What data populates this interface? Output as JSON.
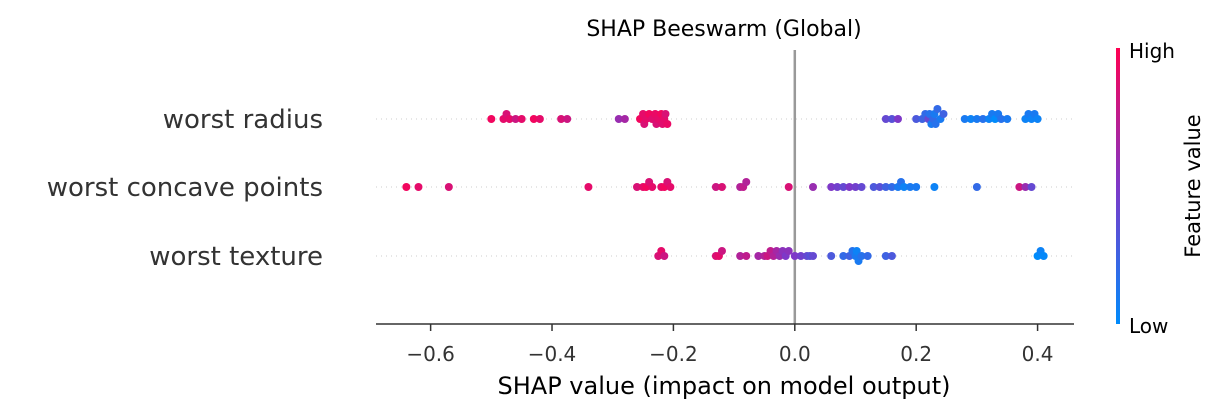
{
  "chart_data": {
    "type": "scatter",
    "subtype": "shap-beeswarm",
    "title": "SHAP Beeswarm (Global)",
    "xlabel": "SHAP value (impact on model output)",
    "ylabel": "",
    "xlim": [
      -0.69,
      0.46
    ],
    "xticks": [
      -0.6,
      -0.4,
      -0.2,
      0.0,
      0.2,
      0.4
    ],
    "xtick_labels": [
      "−0.6",
      "−0.4",
      "−0.2",
      "0.0",
      "0.2",
      "0.4"
    ],
    "grid": false,
    "zero_line": true,
    "colorbar": {
      "label": "Feature value",
      "high_label": "High",
      "low_label": "Low",
      "high_color": "#ff0052",
      "mid_color": "#7e38c8",
      "low_color": "#008bfb"
    },
    "features": [
      {
        "name": "worst radius",
        "points": [
          [
            -0.5,
            0.95
          ],
          [
            -0.48,
            0.9
          ],
          [
            -0.475,
            0.85
          ],
          [
            -0.47,
            0.9
          ],
          [
            -0.46,
            0.8
          ],
          [
            -0.45,
            0.9
          ],
          [
            -0.43,
            0.95
          ],
          [
            -0.42,
            0.9
          ],
          [
            -0.385,
            0.85
          ],
          [
            -0.375,
            0.8
          ],
          [
            -0.29,
            0.6
          ],
          [
            -0.28,
            0.65
          ],
          [
            -0.255,
            0.95
          ],
          [
            -0.25,
            0.9
          ],
          [
            -0.248,
            0.85
          ],
          [
            -0.245,
            0.9
          ],
          [
            -0.24,
            0.95
          ],
          [
            -0.235,
            0.88
          ],
          [
            -0.23,
            0.92
          ],
          [
            -0.228,
            0.85
          ],
          [
            -0.225,
            0.9
          ],
          [
            -0.22,
            0.95
          ],
          [
            -0.218,
            0.88
          ],
          [
            -0.215,
            0.9
          ],
          [
            -0.213,
            0.85
          ],
          [
            -0.21,
            0.92
          ],
          [
            0.15,
            0.4
          ],
          [
            0.16,
            0.35
          ],
          [
            0.17,
            0.5
          ],
          [
            0.2,
            0.3
          ],
          [
            0.21,
            0.25
          ],
          [
            0.215,
            0.2
          ],
          [
            0.22,
            0.4
          ],
          [
            0.222,
            0.15
          ],
          [
            0.225,
            0.1
          ],
          [
            0.228,
            0.2
          ],
          [
            0.23,
            0.1
          ],
          [
            0.232,
            0.15
          ],
          [
            0.235,
            0.2
          ],
          [
            0.24,
            0.1
          ],
          [
            0.245,
            0.25
          ],
          [
            0.28,
            0.1
          ],
          [
            0.29,
            0.05
          ],
          [
            0.3,
            0.1
          ],
          [
            0.31,
            0.15
          ],
          [
            0.32,
            0.05
          ],
          [
            0.325,
            0.1
          ],
          [
            0.33,
            0.0
          ],
          [
            0.335,
            0.1
          ],
          [
            0.34,
            0.15
          ],
          [
            0.35,
            0.1
          ],
          [
            0.38,
            0.05
          ],
          [
            0.385,
            0.1
          ],
          [
            0.39,
            0.05
          ],
          [
            0.395,
            0.1
          ],
          [
            0.4,
            0.05
          ]
        ]
      },
      {
        "name": "worst concave points",
        "points": [
          [
            -0.64,
            0.95
          ],
          [
            -0.62,
            0.9
          ],
          [
            -0.57,
            0.85
          ],
          [
            -0.34,
            0.9
          ],
          [
            -0.26,
            0.85
          ],
          [
            -0.25,
            0.9
          ],
          [
            -0.245,
            0.95
          ],
          [
            -0.24,
            0.85
          ],
          [
            -0.235,
            0.9
          ],
          [
            -0.22,
            0.9
          ],
          [
            -0.215,
            0.95
          ],
          [
            -0.21,
            0.85
          ],
          [
            -0.205,
            0.9
          ],
          [
            -0.13,
            0.8
          ],
          [
            -0.12,
            0.85
          ],
          [
            -0.09,
            0.7
          ],
          [
            -0.085,
            0.75
          ],
          [
            -0.08,
            0.7
          ],
          [
            -0.01,
            0.85
          ],
          [
            0.03,
            0.6
          ],
          [
            0.06,
            0.5
          ],
          [
            0.07,
            0.45
          ],
          [
            0.08,
            0.4
          ],
          [
            0.09,
            0.5
          ],
          [
            0.1,
            0.45
          ],
          [
            0.11,
            0.4
          ],
          [
            0.13,
            0.3
          ],
          [
            0.14,
            0.35
          ],
          [
            0.15,
            0.25
          ],
          [
            0.16,
            0.2
          ],
          [
            0.17,
            0.1
          ],
          [
            0.175,
            0.15
          ],
          [
            0.18,
            0.05
          ],
          [
            0.19,
            0.1
          ],
          [
            0.2,
            0.1
          ],
          [
            0.23,
            0.05
          ],
          [
            0.3,
            0.2
          ],
          [
            0.37,
            0.8
          ],
          [
            0.38,
            0.6
          ],
          [
            0.39,
            0.4
          ]
        ]
      },
      {
        "name": "worst texture",
        "points": [
          [
            -0.225,
            0.85
          ],
          [
            -0.22,
            0.9
          ],
          [
            -0.215,
            0.8
          ],
          [
            -0.13,
            0.85
          ],
          [
            -0.125,
            0.9
          ],
          [
            -0.12,
            0.8
          ],
          [
            -0.09,
            0.7
          ],
          [
            -0.08,
            0.75
          ],
          [
            -0.06,
            0.65
          ],
          [
            -0.05,
            0.7
          ],
          [
            -0.045,
            0.8
          ],
          [
            -0.04,
            0.75
          ],
          [
            -0.035,
            0.7
          ],
          [
            -0.03,
            0.65
          ],
          [
            -0.025,
            0.6
          ],
          [
            -0.02,
            0.55
          ],
          [
            -0.015,
            0.5
          ],
          [
            -0.01,
            0.55
          ],
          [
            0.0,
            0.5
          ],
          [
            0.01,
            0.45
          ],
          [
            0.02,
            0.4
          ],
          [
            0.025,
            0.35
          ],
          [
            0.03,
            0.4
          ],
          [
            0.06,
            0.3
          ],
          [
            0.08,
            0.2
          ],
          [
            0.09,
            0.25
          ],
          [
            0.095,
            0.15
          ],
          [
            0.1,
            0.1
          ],
          [
            0.102,
            0.05
          ],
          [
            0.105,
            0.1
          ],
          [
            0.11,
            0.15
          ],
          [
            0.12,
            0.2
          ],
          [
            0.15,
            0.25
          ],
          [
            0.16,
            0.3
          ],
          [
            0.4,
            0.0
          ],
          [
            0.405,
            0.05
          ],
          [
            0.41,
            0.02
          ]
        ]
      }
    ]
  }
}
